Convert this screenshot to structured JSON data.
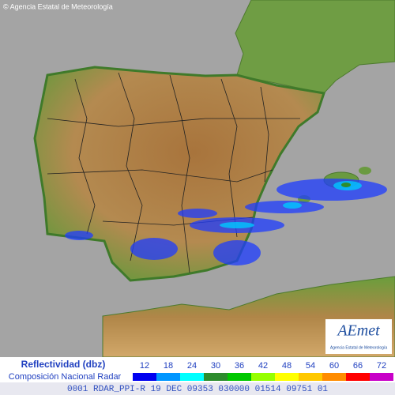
{
  "header": {
    "copyright": "© Agencia Estatal de Meteorología"
  },
  "logo": {
    "name": "AEmet",
    "subtitle": "Agencia Estatal de Meteorología"
  },
  "legend": {
    "title": "Reflectividad (dbz)",
    "subtitle": "Composición Nacional Radar",
    "items": [
      {
        "label": "12",
        "color": "#0000f0"
      },
      {
        "label": "18",
        "color": "#0096ff"
      },
      {
        "label": "24",
        "color": "#00ffff"
      },
      {
        "label": "30",
        "color": "#2d8c2d"
      },
      {
        "label": "36",
        "color": "#00c800"
      },
      {
        "label": "42",
        "color": "#96ff00"
      },
      {
        "label": "48",
        "color": "#ffff00"
      },
      {
        "label": "54",
        "color": "#ffc800"
      },
      {
        "label": "60",
        "color": "#ff8c00"
      },
      {
        "label": "66",
        "color": "#ff0000"
      },
      {
        "label": "72",
        "color": "#c800c8"
      }
    ]
  },
  "footer": {
    "text": "0001 RDAR_PPI-R  19 DEC 09353 030000 01514 09751 01"
  }
}
